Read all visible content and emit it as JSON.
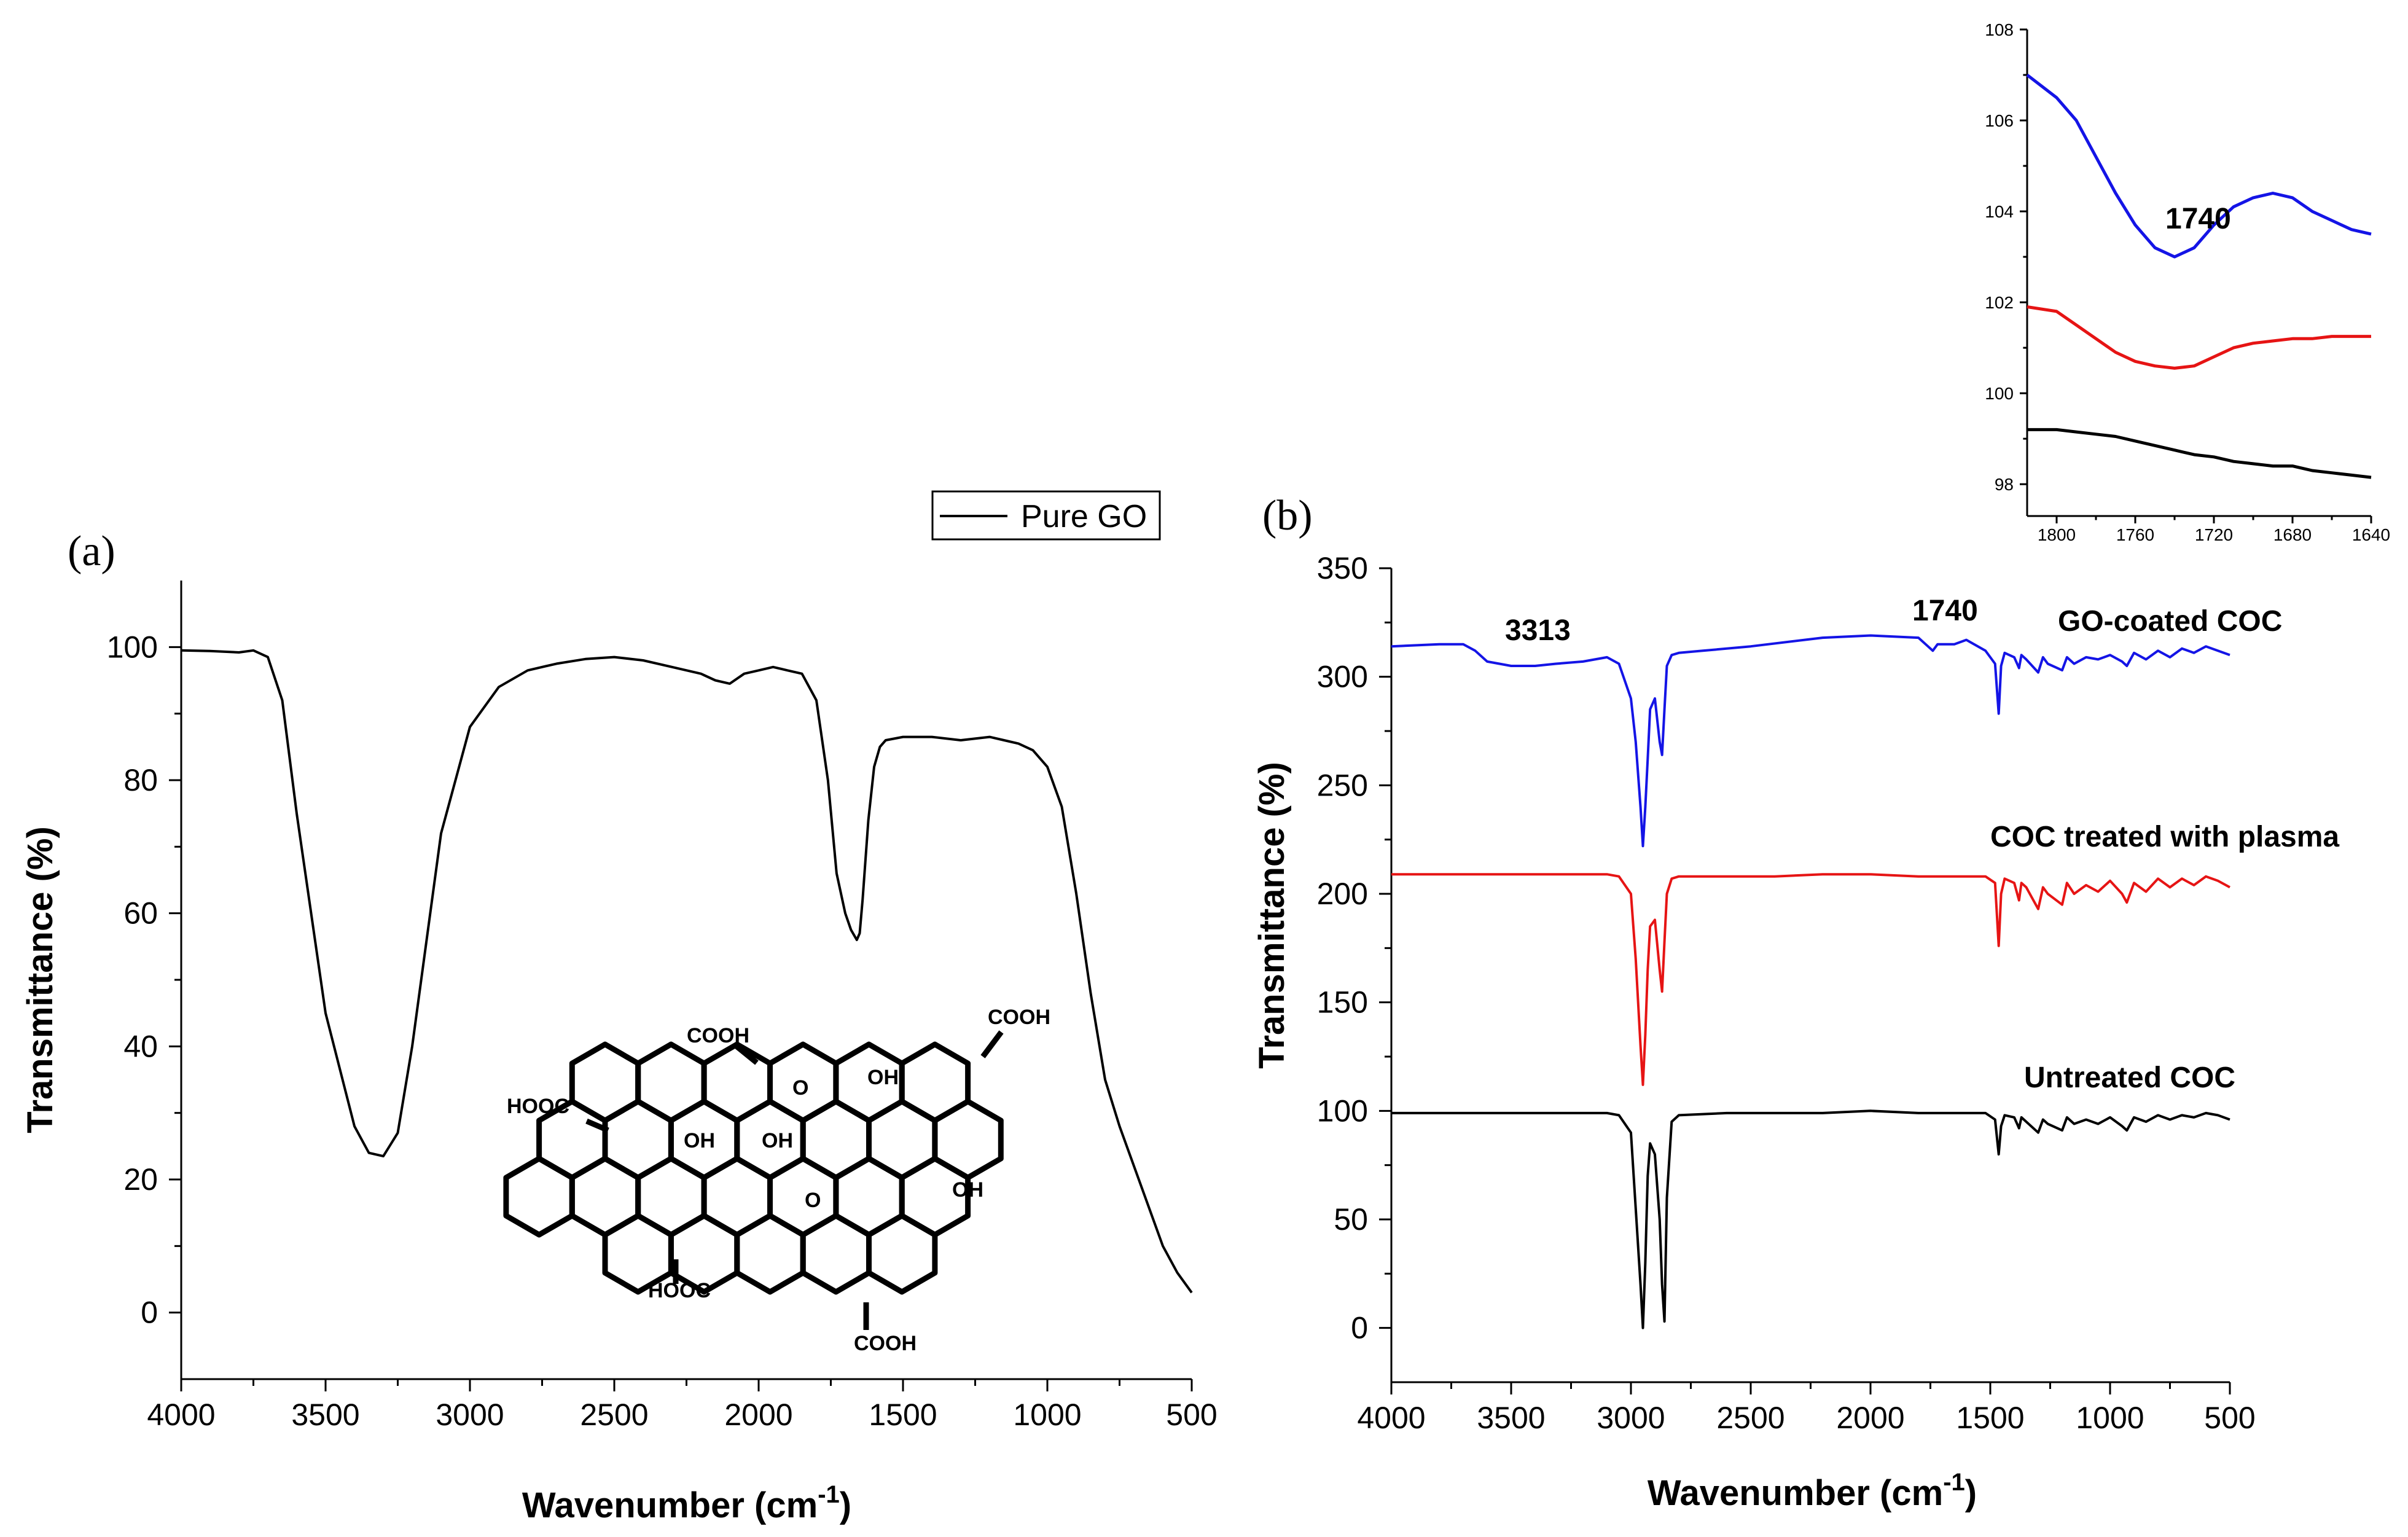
{
  "chart_data": [
    {
      "id": "a",
      "panel_label": "(a)",
      "type": "line",
      "xlabel": "Wavenumber (cm",
      "xlabel_sup": "-1",
      "xlabel_close": ")",
      "ylabel": "Transmittance (%)",
      "xlim": [
        4000,
        500
      ],
      "ylim": [
        -10,
        110
      ],
      "x_ticks": [
        4000,
        3500,
        3000,
        2500,
        2000,
        1500,
        1000,
        500
      ],
      "y_ticks": [
        0,
        20,
        40,
        60,
        80,
        100
      ],
      "legend": [
        "Pure GO"
      ],
      "legend_position": "top-right",
      "series": [
        {
          "name": "Pure GO",
          "color": "#000000",
          "x": [
            4000,
            3900,
            3800,
            3750,
            3700,
            3650,
            3600,
            3500,
            3400,
            3350,
            3300,
            3250,
            3200,
            3100,
            3000,
            2900,
            2800,
            2700,
            2600,
            2500,
            2400,
            2300,
            2200,
            2150,
            2100,
            2050,
            2000,
            1950,
            1900,
            1850,
            1800,
            1760,
            1730,
            1700,
            1680,
            1660,
            1650,
            1640,
            1620,
            1600,
            1580,
            1560,
            1500,
            1400,
            1300,
            1200,
            1150,
            1100,
            1050,
            1000,
            950,
            900,
            850,
            800,
            750,
            700,
            650,
            600,
            550,
            500
          ],
          "values": [
            99.5,
            99.4,
            99.2,
            99.5,
            98.5,
            92,
            75,
            45,
            28,
            24,
            23.5,
            27,
            40,
            72,
            88,
            94,
            96.5,
            97.5,
            98.2,
            98.5,
            98,
            97,
            96,
            95,
            94.5,
            96,
            96.5,
            97,
            96.5,
            96,
            92,
            80,
            66,
            60,
            57.5,
            56,
            57,
            62,
            74,
            82,
            85,
            86,
            86.5,
            86.5,
            86,
            86.5,
            86,
            85.5,
            84.5,
            82,
            76,
            63,
            48,
            35,
            28,
            22,
            16,
            10,
            6,
            3
          ]
        }
      ],
      "inset_structure_labels": [
        "COOH",
        "COOH",
        "HOOC",
        "OH",
        "OH",
        "OH",
        "O",
        "O",
        "OH",
        "HOOC",
        "COOH"
      ]
    },
    {
      "id": "b",
      "panel_label": "(b)",
      "type": "line",
      "xlabel": "Wavenumber (cm",
      "xlabel_sup": "-1",
      "xlabel_close": ")",
      "ylabel": "Transmittance (%)",
      "xlim": [
        4000,
        500
      ],
      "ylim": [
        -25,
        350
      ],
      "x_ticks": [
        4000,
        3500,
        3000,
        2500,
        2000,
        1500,
        1000,
        500
      ],
      "y_ticks": [
        0,
        50,
        100,
        150,
        200,
        250,
        300,
        350
      ],
      "annotations": [
        {
          "text": "3313",
          "x": 3313,
          "y": 325
        },
        {
          "text": "1740",
          "x": 1740,
          "y": 330
        }
      ],
      "series": [
        {
          "name": "GO-coated COC",
          "color": "#1414e6",
          "x": [
            4000,
            3800,
            3700,
            3650,
            3600,
            3500,
            3400,
            3313,
            3200,
            3100,
            3050,
            3000,
            2980,
            2960,
            2950,
            2940,
            2930,
            2920,
            2900,
            2880,
            2870,
            2860,
            2850,
            2830,
            2800,
            2700,
            2500,
            2200,
            2000,
            1800,
            1760,
            1740,
            1720,
            1650,
            1600,
            1520,
            1480,
            1465,
            1455,
            1440,
            1400,
            1380,
            1370,
            1350,
            1300,
            1280,
            1260,
            1200,
            1180,
            1150,
            1100,
            1050,
            1000,
            950,
            930,
            900,
            850,
            800,
            750,
            700,
            650,
            600,
            550,
            500
          ],
          "values": [
            314,
            315,
            315,
            312,
            307,
            305,
            305,
            306,
            307,
            309,
            306,
            290,
            270,
            240,
            222,
            240,
            262,
            285,
            290,
            270,
            264,
            285,
            305,
            310,
            311,
            312,
            314,
            318,
            319,
            318,
            314,
            312,
            315,
            315,
            317,
            312,
            306,
            283,
            305,
            311,
            309,
            304,
            310,
            308,
            302,
            309,
            306,
            303,
            309,
            306,
            309,
            308,
            310,
            307,
            305,
            311,
            308,
            312,
            309,
            313,
            311,
            314,
            312,
            310
          ]
        },
        {
          "name": "COC treated with plasma",
          "color": "#e61414",
          "x": [
            4000,
            3800,
            3600,
            3400,
            3200,
            3100,
            3050,
            3000,
            2980,
            2960,
            2950,
            2940,
            2930,
            2920,
            2900,
            2880,
            2870,
            2860,
            2850,
            2830,
            2800,
            2600,
            2400,
            2200,
            2000,
            1800,
            1600,
            1520,
            1480,
            1465,
            1455,
            1440,
            1400,
            1380,
            1370,
            1350,
            1300,
            1280,
            1260,
            1200,
            1180,
            1150,
            1100,
            1050,
            1000,
            950,
            930,
            900,
            850,
            800,
            750,
            700,
            650,
            600,
            550,
            500
          ],
          "values": [
            209,
            209,
            209,
            209,
            209,
            209,
            208,
            200,
            170,
            130,
            112,
            135,
            165,
            185,
            188,
            165,
            155,
            178,
            200,
            207,
            208,
            208,
            208,
            209,
            209,
            208,
            208,
            208,
            205,
            176,
            200,
            207,
            205,
            197,
            205,
            203,
            193,
            203,
            200,
            195,
            205,
            200,
            204,
            201,
            206,
            200,
            196,
            205,
            201,
            207,
            203,
            207,
            204,
            208,
            206,
            203
          ]
        },
        {
          "name": "Untreated COC",
          "color": "#000000",
          "x": [
            4000,
            3800,
            3600,
            3400,
            3200,
            3100,
            3050,
            3000,
            2980,
            2960,
            2950,
            2940,
            2930,
            2920,
            2900,
            2880,
            2870,
            2860,
            2850,
            2830,
            2800,
            2600,
            2400,
            2200,
            2000,
            1800,
            1600,
            1520,
            1480,
            1465,
            1455,
            1440,
            1400,
            1380,
            1370,
            1350,
            1300,
            1280,
            1260,
            1200,
            1180,
            1150,
            1100,
            1050,
            1000,
            950,
            930,
            900,
            850,
            800,
            750,
            700,
            650,
            600,
            550,
            500
          ],
          "values": [
            99,
            99,
            99,
            99,
            99,
            99,
            98,
            90,
            55,
            20,
            0,
            30,
            70,
            85,
            80,
            50,
            20,
            3,
            60,
            95,
            98,
            99,
            99,
            99,
            100,
            99,
            99,
            99,
            96,
            80,
            93,
            98,
            97,
            92,
            97,
            95,
            90,
            96,
            94,
            91,
            97,
            94,
            96,
            94,
            97,
            93,
            91,
            97,
            95,
            98,
            96,
            98,
            97,
            99,
            98,
            96
          ]
        }
      ]
    },
    {
      "id": "b-inset",
      "type": "line",
      "xlim": [
        1815,
        1640
      ],
      "ylim": [
        97.3,
        108
      ],
      "x_ticks": [
        1800,
        1760,
        1720,
        1680,
        1640
      ],
      "y_ticks": [
        98,
        100,
        102,
        104,
        106,
        108
      ],
      "annotations": [
        {
          "text": "1740",
          "x": 1740,
          "y": 104
        }
      ],
      "series": [
        {
          "name": "GO-coated COC",
          "color": "#1414e6",
          "x": [
            1815,
            1800,
            1790,
            1780,
            1770,
            1760,
            1750,
            1740,
            1730,
            1720,
            1710,
            1700,
            1690,
            1680,
            1670,
            1660,
            1650,
            1640
          ],
          "values": [
            107,
            106.5,
            106,
            105.2,
            104.4,
            103.7,
            103.2,
            103.0,
            103.2,
            103.7,
            104.1,
            104.3,
            104.4,
            104.3,
            104.0,
            103.8,
            103.6,
            103.5
          ]
        },
        {
          "name": "COC treated with plasma",
          "color": "#e61414",
          "x": [
            1815,
            1800,
            1790,
            1780,
            1770,
            1760,
            1750,
            1740,
            1730,
            1720,
            1710,
            1700,
            1690,
            1680,
            1670,
            1660,
            1650,
            1640
          ],
          "values": [
            101.9,
            101.8,
            101.5,
            101.2,
            100.9,
            100.7,
            100.6,
            100.55,
            100.6,
            100.8,
            101.0,
            101.1,
            101.15,
            101.2,
            101.2,
            101.25,
            101.25,
            101.25
          ]
        },
        {
          "name": "Untreated COC",
          "color": "#000000",
          "x": [
            1815,
            1800,
            1790,
            1780,
            1770,
            1760,
            1750,
            1740,
            1730,
            1720,
            1710,
            1700,
            1690,
            1680,
            1670,
            1660,
            1650,
            1640
          ],
          "values": [
            99.2,
            99.2,
            99.15,
            99.1,
            99.05,
            98.95,
            98.85,
            98.75,
            98.65,
            98.6,
            98.5,
            98.45,
            98.4,
            98.4,
            98.3,
            98.25,
            98.2,
            98.15
          ]
        }
      ]
    }
  ]
}
